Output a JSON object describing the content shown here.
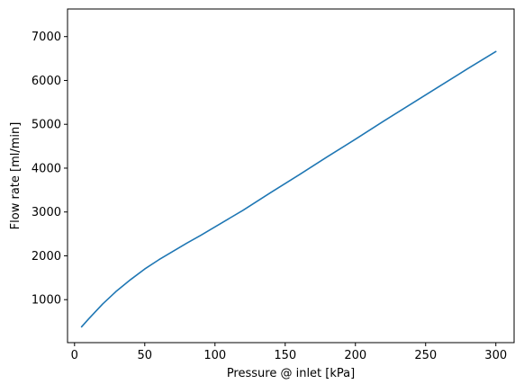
{
  "chart_data": {
    "type": "line",
    "title": "",
    "xlabel": "Pressure @ inlet [kPa]",
    "ylabel": "Flow rate [ml/min]",
    "xlim": [
      -5,
      313
    ],
    "ylim": [
      20,
      7630
    ],
    "xticks": [
      0,
      50,
      100,
      150,
      200,
      250,
      300
    ],
    "yticks": [
      1000,
      2000,
      3000,
      4000,
      5000,
      6000,
      7000
    ],
    "grid": false,
    "series": [
      {
        "color": "#1f77b4",
        "x": [
          5,
          10,
          20,
          30,
          40,
          50,
          60,
          70,
          80,
          90,
          100,
          120,
          140,
          160,
          180,
          200,
          220,
          240,
          260,
          280,
          300
        ],
        "y": [
          380,
          560,
          900,
          1200,
          1460,
          1700,
          1910,
          2100,
          2290,
          2470,
          2660,
          3040,
          3450,
          3850,
          4260,
          4660,
          5070,
          5470,
          5870,
          6270,
          6660
        ]
      }
    ]
  }
}
